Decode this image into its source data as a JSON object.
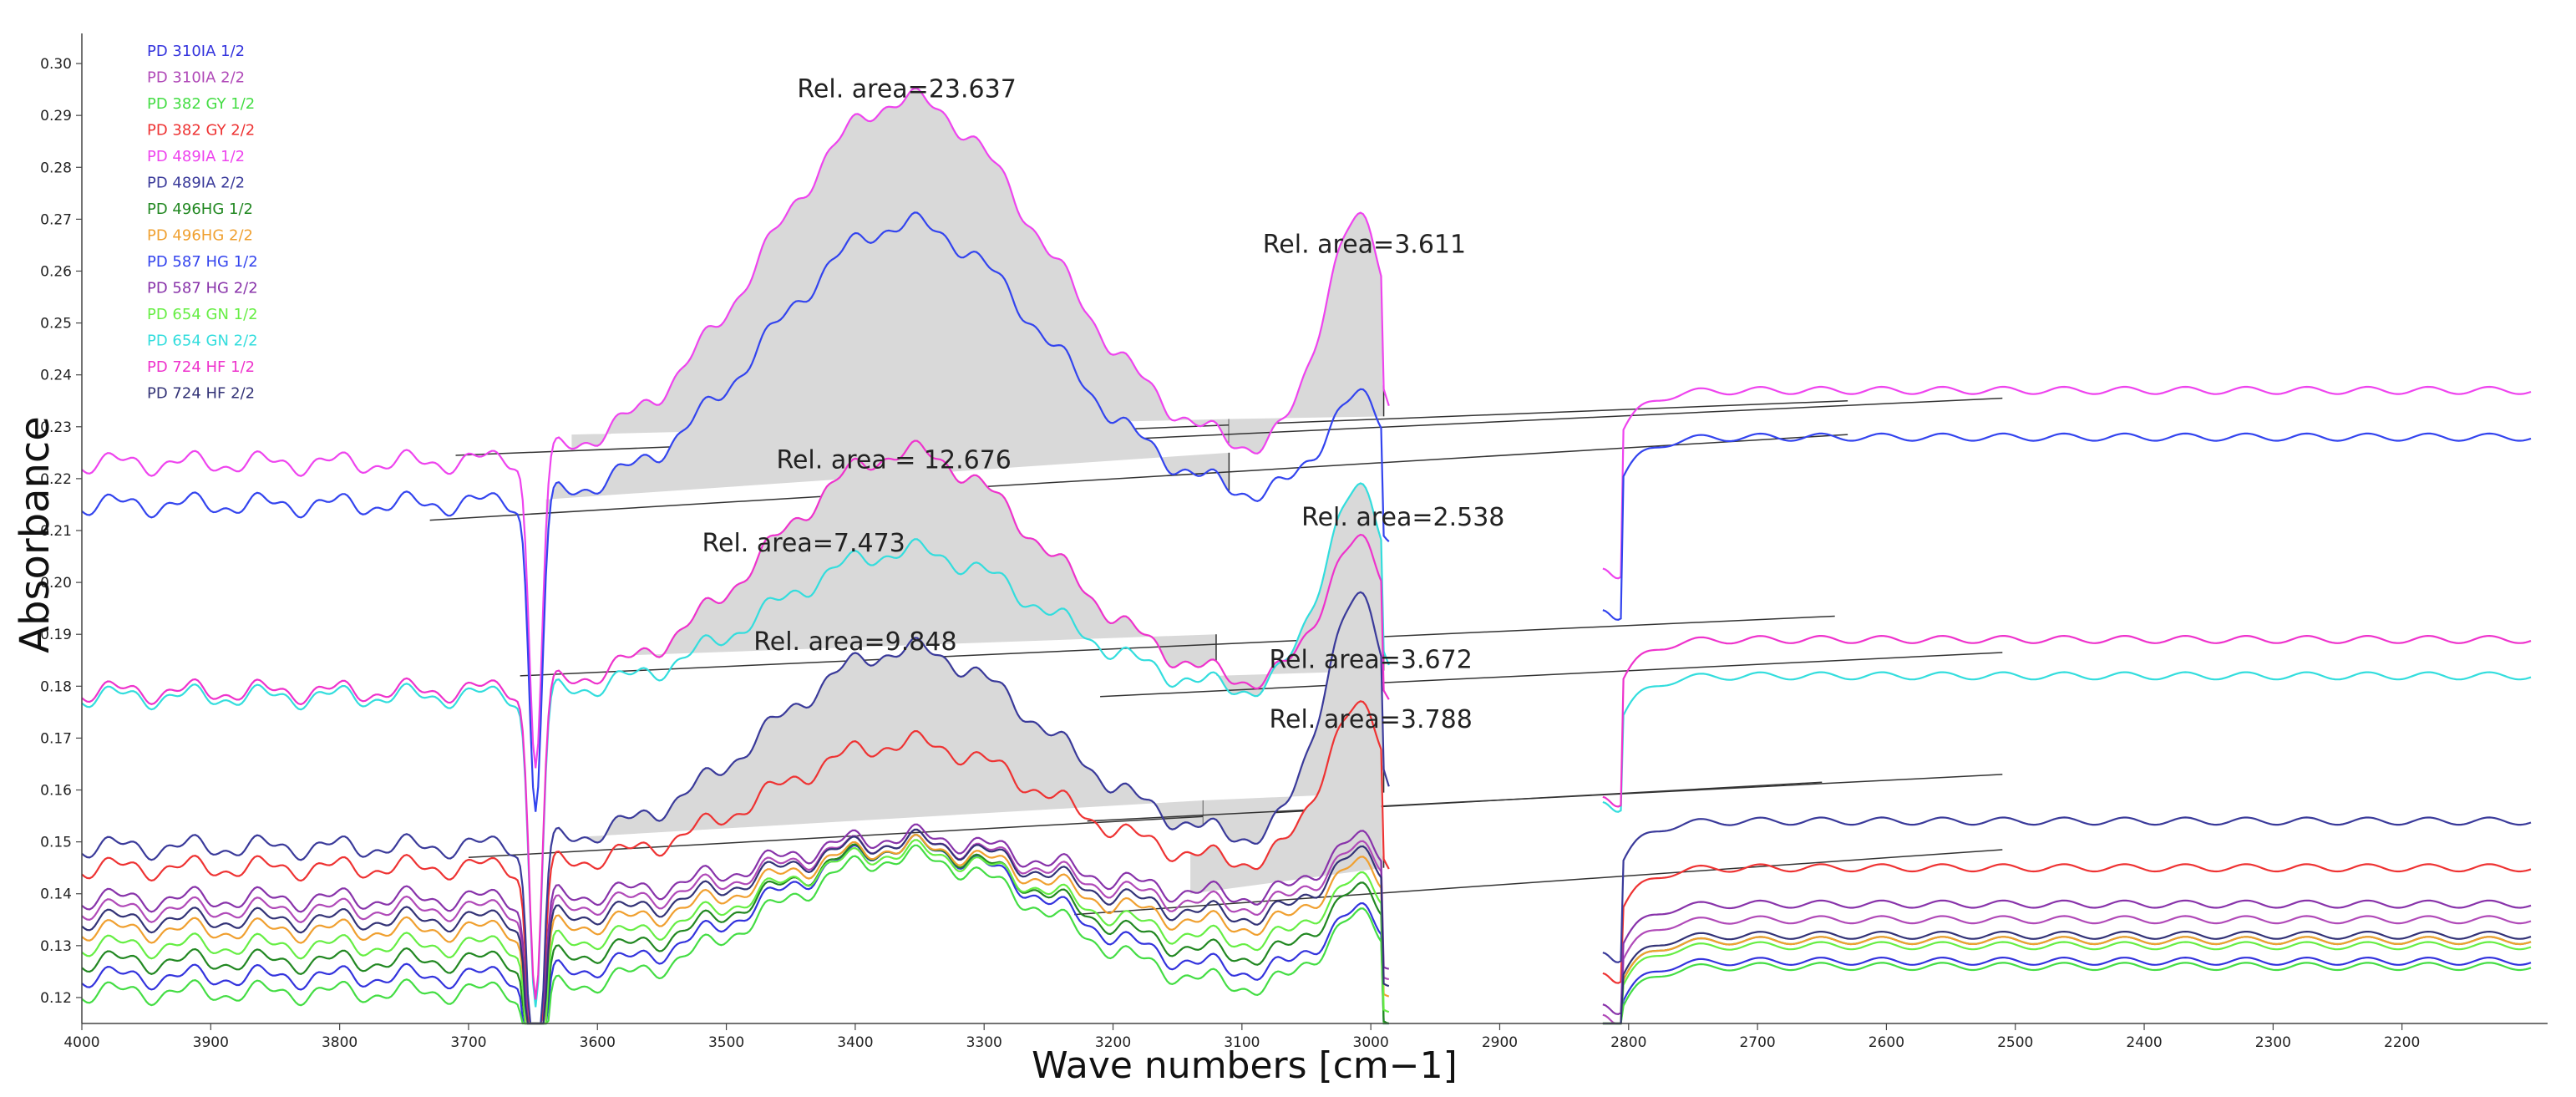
{
  "chart_data": {
    "type": "line",
    "title": "",
    "xlabel": "Wave numbers [cm−1]",
    "ylabel": "Absorbance",
    "xlim": [
      4000,
      2100
    ],
    "ylim": [
      0.115,
      0.305
    ],
    "grid": false,
    "legend_position": "top-left",
    "x_ticks": [
      "4000",
      "3900",
      "3800",
      "3700",
      "3600",
      "3500",
      "3400",
      "3300",
      "3200",
      "3100",
      "3000",
      "2900",
      "2800",
      "2700",
      "2600",
      "2500",
      "2400",
      "2300",
      "2200"
    ],
    "y_ticks": [
      "0.30",
      "0.29",
      "0.28",
      "0.27",
      "0.26",
      "0.25",
      "0.24",
      "0.23",
      "0.22",
      "0.21",
      "0.20",
      "0.19",
      "0.18",
      "0.17",
      "0.16",
      "0.15",
      "0.14",
      "0.13",
      "0.12"
    ],
    "series": [
      {
        "name": "PD 310IA 1/2",
        "color": "#3333dd",
        "base": 0.124,
        "hump": 0.025,
        "shoulder": 0.012,
        "tail": 0.127
      },
      {
        "name": "PD 310IA 2/2",
        "color": "#b04ab8",
        "base": 0.137,
        "hump": 0.013,
        "shoulder": 0.011,
        "tail": 0.135
      },
      {
        "name": "PD 382 GY 1/2",
        "color": "#44dd44",
        "base": 0.121,
        "hump": 0.026,
        "shoulder": 0.014,
        "tail": 0.126
      },
      {
        "name": "PD 382 GY 2/2",
        "color": "#ee3333",
        "base": 0.145,
        "hump": 0.024,
        "shoulder": 0.03,
        "tail": 0.145
      },
      {
        "name": "PD 489IA 1/2",
        "color": "#ee44ee",
        "base": 0.223,
        "hump": 0.07,
        "shoulder": 0.046,
        "tail": 0.237
      },
      {
        "name": "PD 489IA 2/2",
        "color": "#3a3a9a",
        "base": 0.149,
        "hump": 0.038,
        "shoulder": 0.047,
        "tail": 0.154
      },
      {
        "name": "PD 496HG 1/2",
        "color": "#228822",
        "base": 0.127,
        "hump": 0.022,
        "shoulder": 0.013,
        "tail": 0.131
      },
      {
        "name": "PD 496HG 2/2",
        "color": "#f0a030",
        "base": 0.133,
        "hump": 0.016,
        "shoulder": 0.012,
        "tail": 0.131
      },
      {
        "name": "PD 587 HG 1/2",
        "color": "#3344ee",
        "base": 0.215,
        "hump": 0.054,
        "shoulder": 0.02,
        "tail": 0.228
      },
      {
        "name": "PD 587 HG 2/2",
        "color": "#8833aa",
        "base": 0.139,
        "hump": 0.012,
        "shoulder": 0.011,
        "tail": 0.138
      },
      {
        "name": "PD 654 GN 1/2",
        "color": "#66ee44",
        "base": 0.13,
        "hump": 0.018,
        "shoulder": 0.012,
        "tail": 0.13
      },
      {
        "name": "PD 654 GN 2/2",
        "color": "#33dddd",
        "base": 0.178,
        "hump": 0.028,
        "shoulder": 0.039,
        "tail": 0.182
      },
      {
        "name": "PD 724 HF 1/2",
        "color": "#ee33cc",
        "base": 0.179,
        "hump": 0.046,
        "shoulder": 0.028,
        "tail": 0.189
      },
      {
        "name": "PD 724 HF 2/2",
        "color": "#333377",
        "base": 0.135,
        "hump": 0.015,
        "shoulder": 0.012,
        "tail": 0.132
      }
    ],
    "integration_regions": [
      {
        "label": "Rel. area=23.637",
        "x_start": 3620,
        "x_end": 3110,
        "curve": "PD 489IA 1/2",
        "baseline": [
          0.2285,
          0.2315
        ],
        "label_x": 3360,
        "label_y": 0.2935
      },
      {
        "label": "Rel. area=3.611",
        "x_start": 3110,
        "x_end": 2990,
        "curve": "PD 489IA 1/2",
        "baseline": [
          0.2315,
          0.232
        ],
        "label_x": 3005,
        "label_y": 0.2635
      },
      {
        "label": "Rel. area = 12.676",
        "x_start": 3640,
        "x_end": 3110,
        "curve": "PD 587 HG 1/2",
        "baseline": [
          0.216,
          0.225
        ],
        "label_x": 3370,
        "label_y": 0.222
      },
      {
        "label": "Rel. area=7.473",
        "x_start": 3570,
        "x_end": 3120,
        "curve": "PD 724 HF 1/2",
        "baseline": [
          0.186,
          0.19
        ],
        "label_x": 3440,
        "label_y": 0.206
      },
      {
        "label": "Rel. area=2.538",
        "x_start": 3120,
        "x_end": 2990,
        "curve": "PD 654 GN 2/2",
        "baseline": [
          0.182,
          0.183
        ],
        "label_x": 2975,
        "label_y": 0.211
      },
      {
        "label": "Rel. area=9.848",
        "x_start": 3610,
        "x_end": 3130,
        "curve": "PD 489IA 2/2",
        "baseline": [
          0.151,
          0.158
        ],
        "label_x": 3400,
        "label_y": 0.187
      },
      {
        "label": "Rel. area=3.672",
        "x_start": 3130,
        "x_end": 2990,
        "curve": "PD 489IA 2/2",
        "baseline": [
          0.158,
          0.1595
        ],
        "label_x": 3000,
        "label_y": 0.1835
      },
      {
        "label": "Rel. area=3.788",
        "x_start": 3140,
        "x_end": 2990,
        "curve": "PD 382 GY 2/2",
        "baseline": [
          0.14,
          0.145
        ],
        "label_x": 3000,
        "label_y": 0.172
      }
    ]
  }
}
